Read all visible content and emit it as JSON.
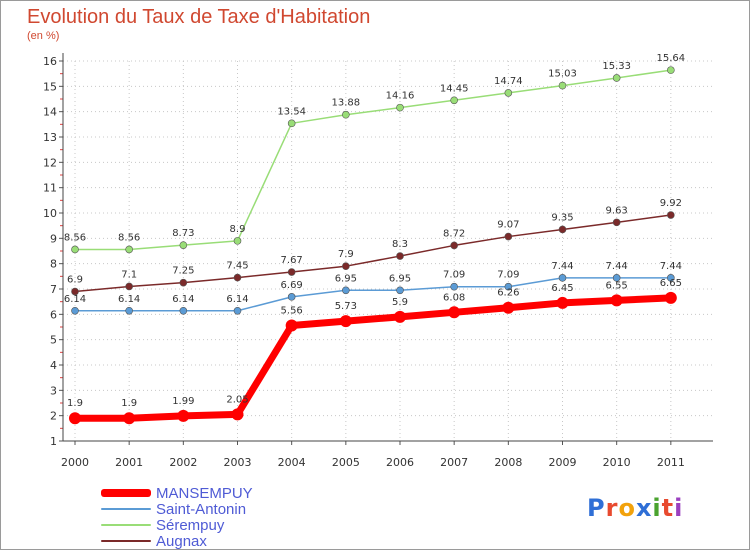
{
  "header": {
    "title": "Evolution du Taux de Taxe d'Habitation",
    "unit": "(en %)"
  },
  "logo": {
    "text": "Proxiti",
    "letter_colors": [
      "#2f6fd6",
      "#e84a2f",
      "#f2a20c",
      "#2f6fd6",
      "#4aa32f",
      "#e84a2f",
      "#9b3fbf"
    ]
  },
  "chart_data": {
    "type": "line",
    "title": "Evolution du Taux de Taxe d'Habitation",
    "ylabel": "(en %)",
    "xlabel": "",
    "x": [
      "2000",
      "2001",
      "2002",
      "2003",
      "2004",
      "2005",
      "2006",
      "2007",
      "2008",
      "2009",
      "2010",
      "2011"
    ],
    "ylim": [
      1,
      16
    ],
    "yticks": [
      "1",
      "2",
      "3",
      "4",
      "5",
      "6",
      "7",
      "8",
      "9",
      "10",
      "11",
      "12",
      "13",
      "14",
      "15",
      "16"
    ],
    "grid": "vertical and horizontal dotted",
    "legend_position": "bottom-left",
    "series": [
      {
        "name": "MANSEMPUY",
        "color": "#ff0000",
        "labels": [
          "1.9",
          "1.9",
          "1.99",
          "2.05",
          "5.56",
          "5.73",
          "5.9",
          "6.08",
          "6.26",
          "6.45",
          "6.55",
          "6.65"
        ],
        "values": [
          1.9,
          1.9,
          1.99,
          2.05,
          5.56,
          5.73,
          5.9,
          6.08,
          6.26,
          6.45,
          6.55,
          6.65
        ]
      },
      {
        "name": "Saint-Antonin",
        "color": "#5b9bd5",
        "labels": [
          "6.14",
          "6.14",
          "6.14",
          "6.14",
          "6.69",
          "6.95",
          "6.95",
          "7.09",
          "7.09",
          "7.44",
          "7.44",
          "7.44"
        ],
        "values": [
          6.14,
          6.14,
          6.14,
          6.14,
          6.69,
          6.95,
          6.95,
          7.09,
          7.09,
          7.44,
          7.44,
          7.44
        ]
      },
      {
        "name": "Sérempuy",
        "color": "#99dd77",
        "labels": [
          "8.56",
          "8.56",
          "8.73",
          "8.9",
          "13.54",
          "13.88",
          "14.16",
          "14.45",
          "14.74",
          "15.03",
          "15.33",
          "15.64"
        ],
        "values": [
          8.56,
          8.56,
          8.73,
          8.9,
          13.54,
          13.88,
          14.16,
          14.45,
          14.74,
          15.03,
          15.33,
          15.64
        ]
      },
      {
        "name": "Augnax",
        "color": "#7b2a2a",
        "labels": [
          "6.9",
          "7.1",
          "7.25",
          "7.45",
          "7.67",
          "7.9",
          "8.3",
          "8.72",
          "9.07",
          "9.35",
          "9.63",
          "9.92"
        ],
        "values": [
          6.9,
          7.1,
          7.25,
          7.45,
          7.67,
          7.9,
          8.3,
          8.72,
          9.07,
          9.35,
          9.63,
          9.92
        ]
      }
    ]
  }
}
